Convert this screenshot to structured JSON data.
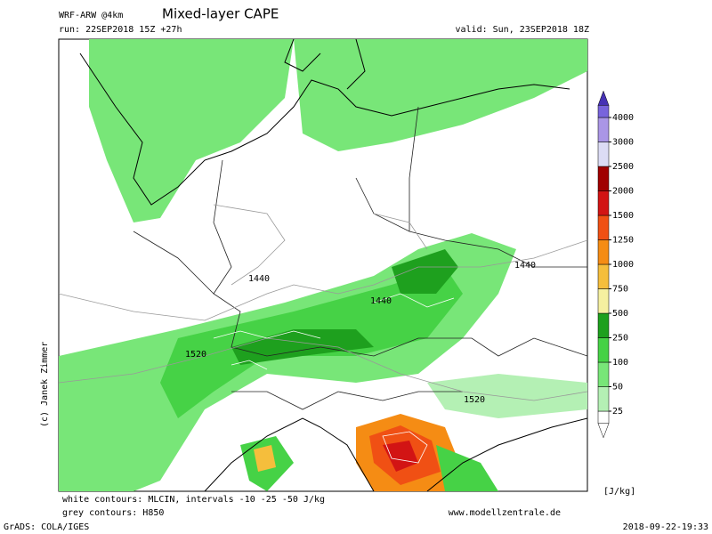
{
  "header": {
    "model": "WRF-ARW @4km",
    "title": "Mixed-layer CAPE",
    "run": "run: 22SEP2018 15Z +27h",
    "valid": "valid: Sun, 23SEP2018 18Z"
  },
  "colorbar": {
    "levels": [
      25,
      50,
      100,
      250,
      500,
      750,
      1000,
      1250,
      1500,
      2000,
      2500,
      3000,
      4000
    ],
    "colors": [
      "#ffffff",
      "#b4f0b4",
      "#78e678",
      "#46d246",
      "#1ea01e",
      "#f5f0a0",
      "#f5be3c",
      "#f58c14",
      "#f05014",
      "#d21414",
      "#a00000",
      "#dcdcf5",
      "#aa96e6",
      "#7864dc"
    ],
    "top_color": "#4632b4",
    "unit": "[J/kg]"
  },
  "map": {
    "contour_labels": [
      "1440",
      "1440",
      "1440",
      "1520",
      "1520"
    ]
  },
  "footer": {
    "note_white": "white contours: MLCIN, intervals -10 -25 -50 J/kg",
    "note_grey": "grey contours: H850",
    "website": "www.modellzentrale.de",
    "copyright": "(c) Janek Zimmer",
    "software": "GrADS: COLA/IGES",
    "timestamp": "2018-09-22-19:33"
  }
}
